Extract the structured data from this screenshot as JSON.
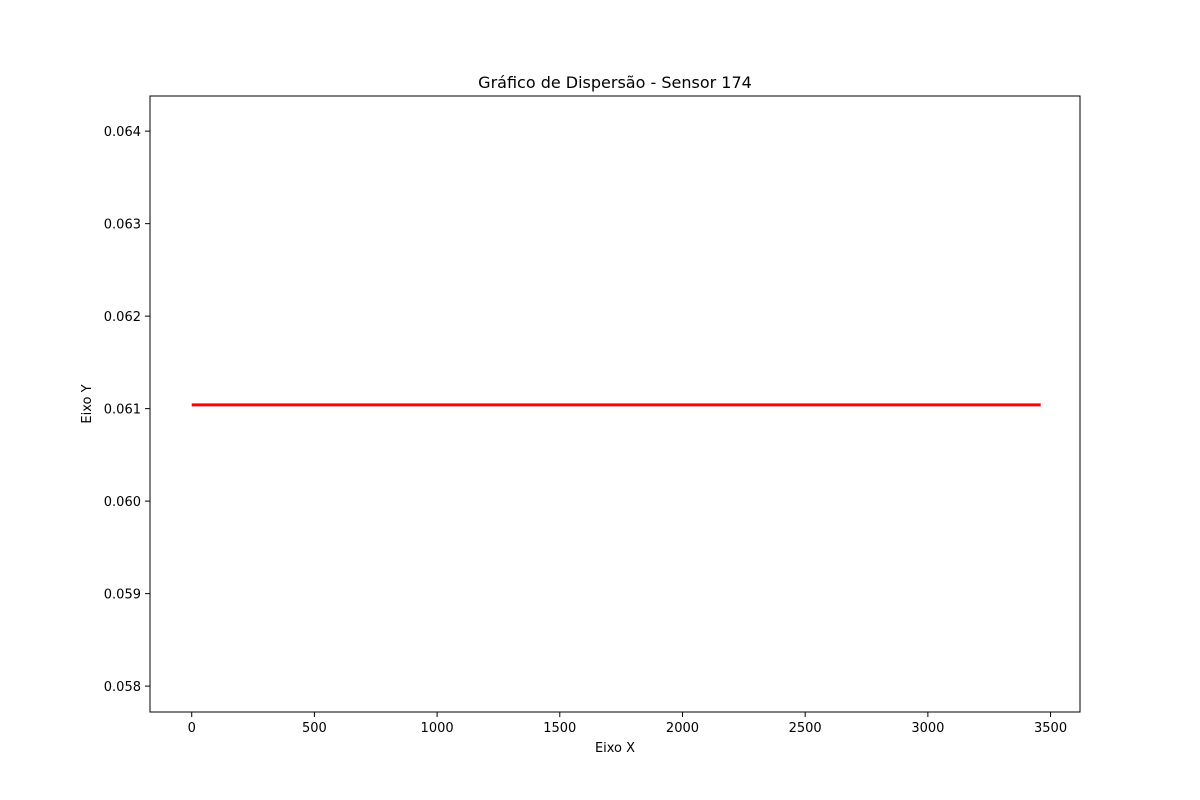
{
  "chart_data": {
    "type": "scatter",
    "title": "Gráfico de Dispersão - Sensor 174",
    "xlabel": "Eixo X",
    "ylabel": "Eixo Y",
    "xlim": [
      -170,
      3620
    ],
    "ylim": [
      0.05772,
      0.06438
    ],
    "xticks": [
      0,
      500,
      1000,
      1500,
      2000,
      2500,
      3000,
      3500
    ],
    "xtick_labels": [
      "0",
      "500",
      "1000",
      "1500",
      "2000",
      "2500",
      "3000",
      "3500"
    ],
    "yticks": [
      0.058,
      0.059,
      0.06,
      0.061,
      0.062,
      0.063,
      0.064
    ],
    "ytick_labels": [
      "0.058",
      "0.059",
      "0.060",
      "0.061",
      "0.062",
      "0.063",
      "0.064"
    ],
    "grid": false,
    "series": [
      {
        "color": "#ff0000",
        "x_range": [
          0,
          3460
        ],
        "y_value": 0.06104
      }
    ]
  }
}
